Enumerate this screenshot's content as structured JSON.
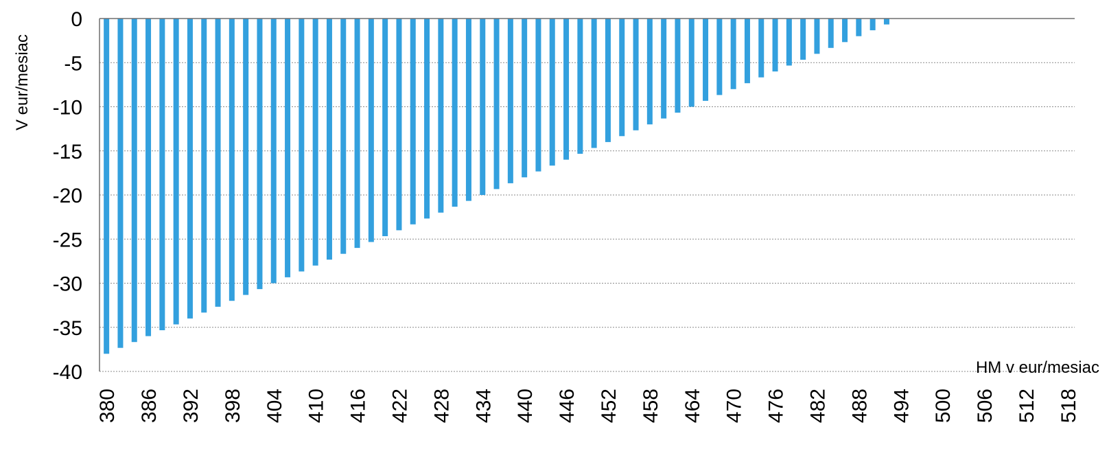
{
  "chart_data": {
    "type": "bar",
    "xlabel": "HM v eur/mesiac",
    "ylabel": "V eur/mesiac",
    "ylim": [
      -40,
      0
    ],
    "yticks": [
      0,
      -5,
      -10,
      -15,
      -20,
      -25,
      -30,
      -35,
      -40
    ],
    "grid": true,
    "bar_color": "#33a0de",
    "categories": [
      380,
      382,
      384,
      386,
      388,
      390,
      392,
      394,
      396,
      398,
      400,
      402,
      404,
      406,
      408,
      410,
      412,
      414,
      416,
      418,
      420,
      422,
      424,
      426,
      428,
      430,
      432,
      434,
      436,
      438,
      440,
      442,
      444,
      446,
      448,
      450,
      452,
      454,
      456,
      458,
      460,
      462,
      464,
      466,
      468,
      470,
      472,
      474,
      476,
      478,
      480,
      482,
      484,
      486,
      488,
      490,
      492,
      494,
      496,
      498,
      500,
      502,
      504,
      506,
      508,
      510,
      512,
      514,
      516,
      518
    ],
    "x_tick_labels": [
      "380",
      "386",
      "392",
      "398",
      "404",
      "410",
      "416",
      "422",
      "428",
      "434",
      "440",
      "446",
      "452",
      "458",
      "464",
      "470",
      "476",
      "482",
      "488",
      "494",
      "500",
      "506",
      "512",
      "518"
    ],
    "values": [
      -38.0,
      -37.33,
      -36.67,
      -36.0,
      -35.33,
      -34.67,
      -34.0,
      -33.33,
      -32.67,
      -32.0,
      -31.33,
      -30.67,
      -30.0,
      -29.33,
      -28.67,
      -28.0,
      -27.33,
      -26.67,
      -26.0,
      -25.33,
      -24.67,
      -24.0,
      -23.33,
      -22.67,
      -22.0,
      -21.33,
      -20.67,
      -20.0,
      -19.33,
      -18.67,
      -18.0,
      -17.33,
      -16.67,
      -16.0,
      -15.33,
      -14.67,
      -14.0,
      -13.33,
      -12.67,
      -12.0,
      -11.33,
      -10.67,
      -10.0,
      -9.33,
      -8.67,
      -8.0,
      -7.33,
      -6.67,
      -6.0,
      -5.33,
      -4.67,
      -4.0,
      -3.33,
      -2.67,
      -2.0,
      -1.33,
      -0.67,
      0,
      0,
      0,
      0,
      0,
      0,
      0,
      0,
      0,
      0,
      0,
      0,
      0
    ]
  }
}
